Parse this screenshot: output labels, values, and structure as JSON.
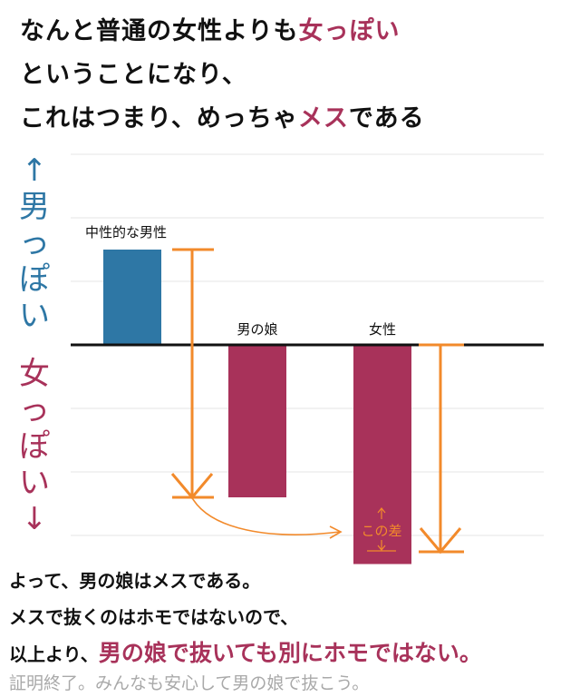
{
  "header": {
    "line1_plain": "なんと普通の女性よりも",
    "line1_em": "女っぽい",
    "line2": "ということになり、",
    "line3_plain": "これはつまり、めっちゃ",
    "line3_em": "メス",
    "line3_tail": "である"
  },
  "side_labels": {
    "male_arrow": "↑",
    "male_chars": [
      "男",
      "っ",
      "ぽ",
      "い"
    ],
    "female_chars": [
      "女",
      "っ",
      "ぽ",
      "い"
    ],
    "female_arrow": "↓"
  },
  "chart_data": {
    "type": "bar",
    "categories": [
      "中性的な男性",
      "男の娘",
      "女性"
    ],
    "values": [
      1.0,
      -1.6,
      -2.3
    ],
    "ylim": [
      -3.0,
      2.8
    ],
    "grid": true,
    "bar_colors": [
      "#2e77a5",
      "#a8325a",
      "#a8325a"
    ],
    "annotation_color": "#f28a2b",
    "annotations": [
      {
        "text": "この差",
        "kind": "difference-bracket",
        "between": [
          "男の娘",
          "女性"
        ]
      }
    ]
  },
  "footer": {
    "line1": "よって、男の娘はメスである。",
    "line2": "メスで抜くのはホモではないので、",
    "line3_plain": "以上より、",
    "line3_em": "男の娘で抜いても別にホモではない。",
    "line4": "証明終了。みんなも安心して男の娘で抜こう。"
  }
}
